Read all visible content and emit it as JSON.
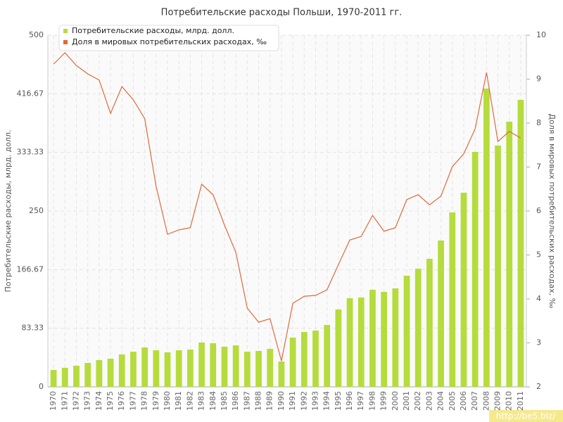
{
  "chart_data": {
    "type": "bar",
    "title": "Потребительские расходы Польши, 1970-2011 гг.",
    "y_label": "Потребительские расходы, млрд. долл.",
    "y2_label": "Доля в мировых потребительских расходах, ‰",
    "watermark": "http://be5.biz/",
    "categories": [
      "1970",
      "1971",
      "1972",
      "1973",
      "1974",
      "1975",
      "1976",
      "1977",
      "1978",
      "1979",
      "1980",
      "1981",
      "1982",
      "1983",
      "1984",
      "1985",
      "1986",
      "1987",
      "1988",
      "1989",
      "1990",
      "1991",
      "1992",
      "1993",
      "1994",
      "1995",
      "1996",
      "1997",
      "1998",
      "1999",
      "2000",
      "2001",
      "2002",
      "2003",
      "2004",
      "2005",
      "2006",
      "2007",
      "2008",
      "2009",
      "2010",
      "2011"
    ],
    "series": [
      {
        "name": "Потребительские расходы, млрд. долл.",
        "color": "#b5dc3c",
        "type": "bar",
        "values": [
          24,
          27,
          30,
          34,
          38,
          40,
          46,
          50,
          56,
          52,
          49,
          52,
          53,
          63,
          62,
          57,
          59,
          50,
          51,
          54,
          36,
          70,
          78,
          80,
          88,
          110,
          126,
          127,
          138,
          135,
          140,
          158,
          168,
          182,
          208,
          248,
          276,
          334,
          424,
          343,
          377,
          408
        ]
      },
      {
        "name": "Доля в мировых потребительских расходах, ‰",
        "color": "#e06a3a",
        "type": "line",
        "axis": "y2",
        "values": [
          9.34,
          9.6,
          9.31,
          9.12,
          8.98,
          8.22,
          8.83,
          8.53,
          8.1,
          6.56,
          5.47,
          5.57,
          5.62,
          6.61,
          6.37,
          5.68,
          5.06,
          3.79,
          3.47,
          3.55,
          2.59,
          3.9,
          4.06,
          4.08,
          4.21,
          4.78,
          5.34,
          5.42,
          5.9,
          5.54,
          5.62,
          6.26,
          6.37,
          6.14,
          6.34,
          7.01,
          7.3,
          7.87,
          9.15,
          7.58,
          7.81,
          7.66
        ]
      }
    ],
    "ylim": [
      0,
      500
    ],
    "yticks": [
      0,
      83.33,
      166.67,
      250,
      333.33,
      416.67,
      500
    ],
    "y2lim": [
      2,
      10
    ],
    "y2ticks": [
      2,
      3,
      4,
      5,
      6,
      7,
      8,
      9,
      10
    ],
    "grid": true
  }
}
